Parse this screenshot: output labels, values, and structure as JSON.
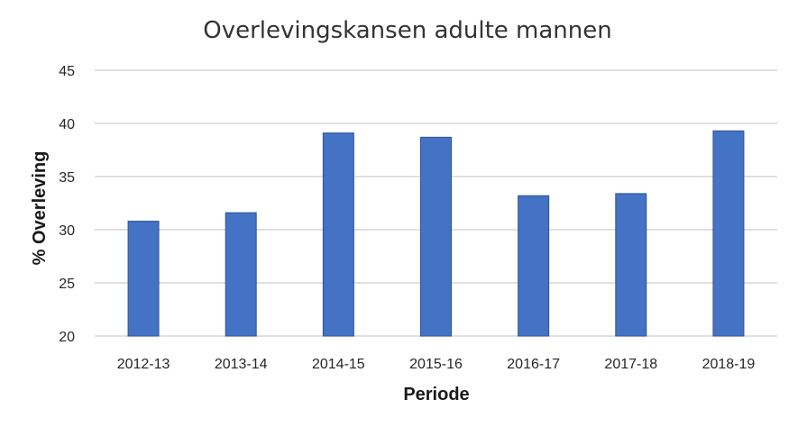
{
  "chart_data": {
    "type": "bar",
    "title": "Overlevingskansen adulte mannen",
    "xlabel": "Periode",
    "ylabel": "% Overleving",
    "categories": [
      "2012-13",
      "2013-14",
      "2014-15",
      "2015-16",
      "2016-17",
      "2017-18",
      "2018-19"
    ],
    "values": [
      30.8,
      31.6,
      39.1,
      38.7,
      33.2,
      33.4,
      39.3
    ],
    "ylim": [
      20,
      45
    ],
    "yticks": [
      "20",
      "25",
      "30",
      "35",
      "40",
      "45"
    ],
    "grid": true,
    "legend": "none",
    "bar_color": "#4472c4"
  }
}
